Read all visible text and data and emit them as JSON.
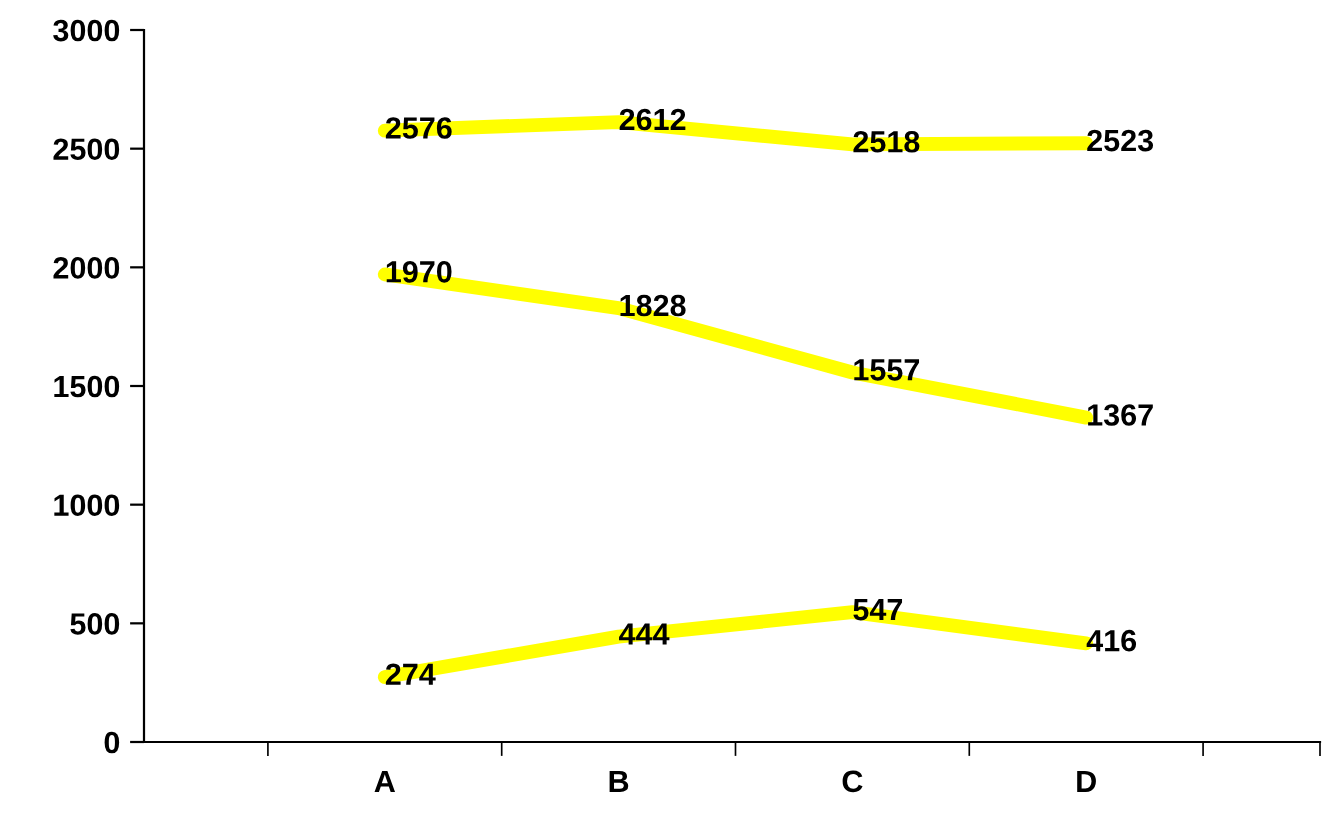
{
  "chart_data": {
    "type": "line",
    "categories": [
      "A",
      "B",
      "C",
      "D"
    ],
    "series": [
      {
        "color": "#ffff00",
        "values": [
          2576,
          2612,
          2518,
          2523
        ]
      },
      {
        "color": "#ffff00",
        "values": [
          1970,
          1828,
          1557,
          1367
        ]
      },
      {
        "color": "#ffff00",
        "values": [
          274,
          444,
          547,
          416
        ]
      }
    ],
    "ylim": [
      0,
      3000
    ],
    "yticks": [
      0,
      500,
      1000,
      1500,
      2000,
      2500,
      3000
    ],
    "data_labels": true,
    "grid": false,
    "legend": false,
    "marker": "none",
    "line_style": "solid"
  }
}
